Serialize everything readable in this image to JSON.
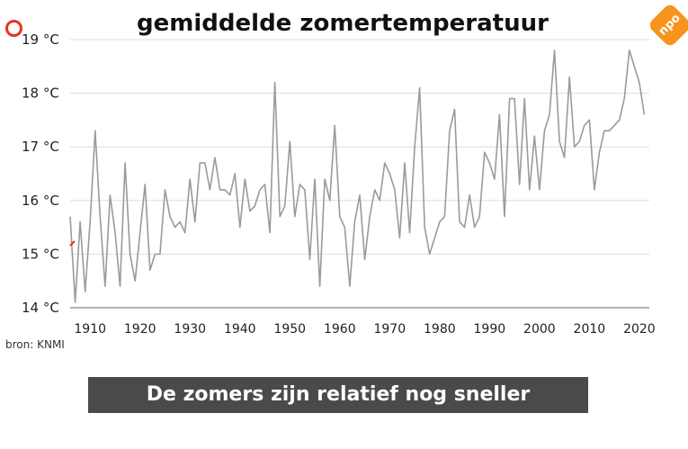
{
  "chart_data": {
    "type": "line",
    "title": "gemiddelde zomertemperatuur",
    "xlabel": "",
    "ylabel": "",
    "xlim": [
      1906,
      2022
    ],
    "ylim": [
      14,
      19
    ],
    "x_ticks": [
      "1910",
      "1920",
      "1930",
      "1940",
      "1950",
      "1960",
      "1970",
      "1980",
      "1990",
      "2000",
      "2010",
      "2020"
    ],
    "y_ticks": [
      "14 °C",
      "15 °C",
      "16 °C",
      "17 °C",
      "18 °C",
      "19 °C"
    ],
    "grid": true,
    "series": [
      {
        "color": "#9a9a9a",
        "x": [
          1906,
          1907,
          1908,
          1909,
          1910,
          1911,
          1912,
          1913,
          1914,
          1915,
          1916,
          1917,
          1918,
          1919,
          1920,
          1921,
          1922,
          1923,
          1924,
          1925,
          1926,
          1927,
          1928,
          1929,
          1930,
          1931,
          1932,
          1933,
          1934,
          1935,
          1936,
          1937,
          1938,
          1939,
          1940,
          1941,
          1942,
          1943,
          1944,
          1945,
          1946,
          1947,
          1948,
          1949,
          1950,
          1951,
          1952,
          1953,
          1954,
          1955,
          1956,
          1957,
          1958,
          1959,
          1960,
          1961,
          1962,
          1963,
          1964,
          1965,
          1966,
          1967,
          1968,
          1969,
          1970,
          1971,
          1972,
          1973,
          1974,
          1975,
          1976,
          1977,
          1978,
          1979,
          1980,
          1981,
          1982,
          1983,
          1984,
          1985,
          1986,
          1987,
          1988,
          1989,
          1990,
          1991,
          1992,
          1993,
          1994,
          1995,
          1996,
          1997,
          1998,
          1999,
          2000,
          2001,
          2002,
          2003,
          2004,
          2005,
          2006,
          2007,
          2008,
          2009,
          2010,
          2011,
          2012,
          2013,
          2014,
          2015,
          2016,
          2017,
          2018,
          2019,
          2020,
          2021
        ],
        "values": [
          15.7,
          14.1,
          15.6,
          14.3,
          15.6,
          17.3,
          15.7,
          14.4,
          16.1,
          15.4,
          14.4,
          16.7,
          15.0,
          14.5,
          15.4,
          16.3,
          14.7,
          15.0,
          15.0,
          16.2,
          15.7,
          15.5,
          15.6,
          15.4,
          16.4,
          15.6,
          16.7,
          16.7,
          16.2,
          16.8,
          16.2,
          16.2,
          16.1,
          16.5,
          15.5,
          16.4,
          15.8,
          15.9,
          16.2,
          16.3,
          15.4,
          18.2,
          15.7,
          15.9,
          17.1,
          15.7,
          16.3,
          16.2,
          14.9,
          16.4,
          14.4,
          16.4,
          16.0,
          17.4,
          15.7,
          15.5,
          14.4,
          15.6,
          16.1,
          14.9,
          15.7,
          16.2,
          16.0,
          16.7,
          16.5,
          16.2,
          15.3,
          16.7,
          15.4,
          17.0,
          18.1,
          15.5,
          15.0,
          15.3,
          15.6,
          15.7,
          17.3,
          17.7,
          15.6,
          15.5,
          16.1,
          15.5,
          15.7,
          16.9,
          16.7,
          16.4,
          17.6,
          15.7,
          17.9,
          17.9,
          16.3,
          17.9,
          16.2,
          17.2,
          16.2,
          17.3,
          17.6,
          18.8,
          17.1,
          16.8,
          18.3,
          17.0,
          17.1,
          17.4,
          17.5,
          16.2,
          16.9,
          17.3,
          17.3,
          17.4,
          17.5,
          17.9,
          18.8,
          18.5,
          18.2,
          17.6
        ]
      }
    ],
    "source_text": "bron: KNMI"
  },
  "caption": "De zomers zijn relatief nog sneller opgewarmd.",
  "logos": {
    "right_text": "npo",
    "left_icon": "circle-logo-icon",
    "right_icon": "npo-logo-icon"
  },
  "colors": {
    "line": "#9a9a9a",
    "grid": "#dddddd",
    "accent_red": "#e8331c",
    "caption_bg": "#4a4a4a",
    "logo_orange": "#f7941d"
  }
}
